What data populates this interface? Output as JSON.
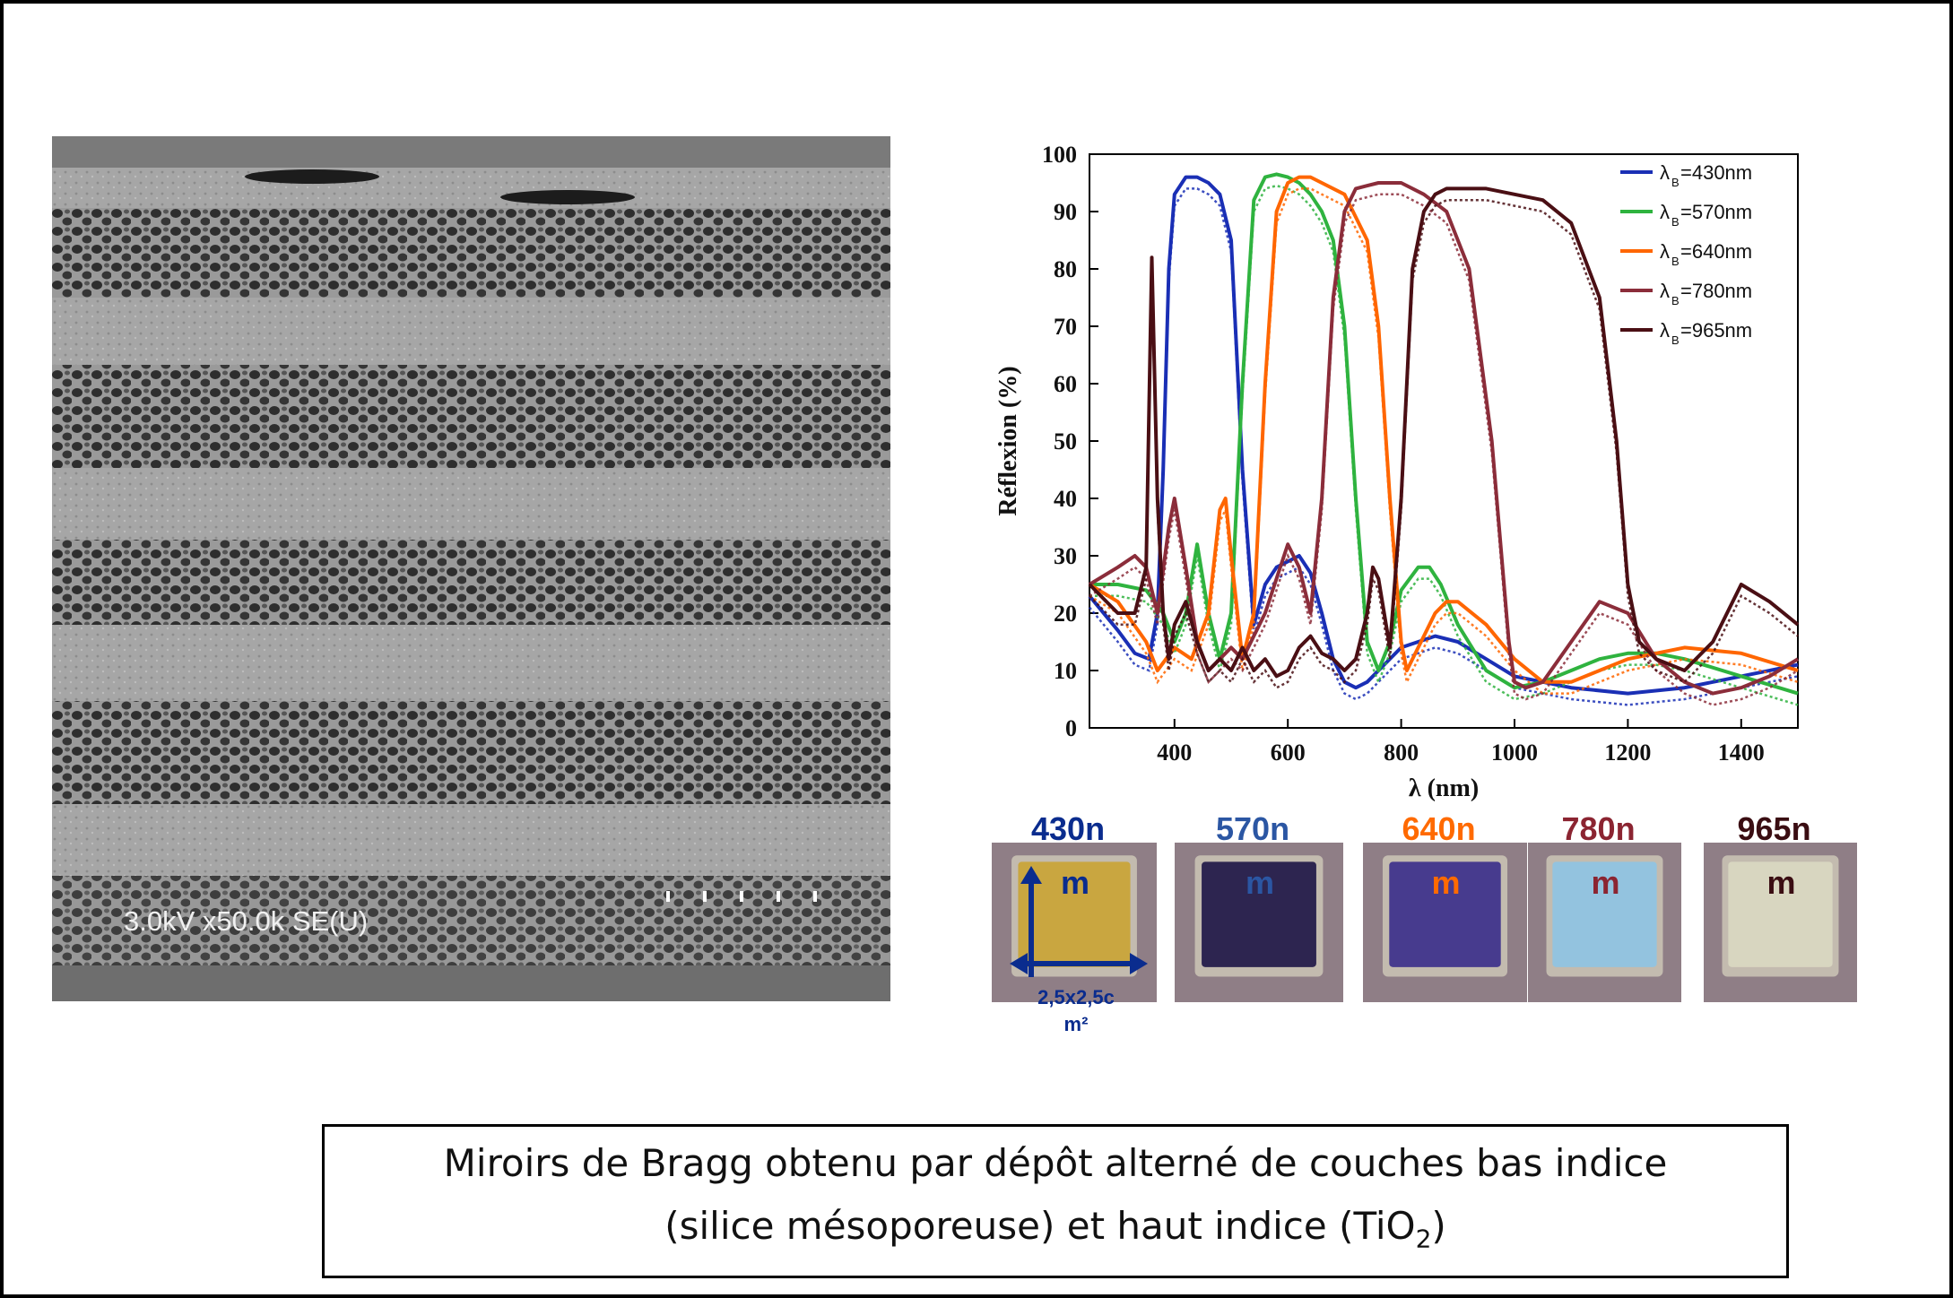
{
  "sem": {
    "label": "3.0kV x50.0k SE(U)"
  },
  "samples": [
    {
      "nm": "430n",
      "unit": "m",
      "color": "#0a2c8e",
      "tile_color": "#c9a640"
    },
    {
      "nm": "570n",
      "unit": "m",
      "color": "#2b56a3",
      "tile_color": "#2d2550"
    },
    {
      "nm": "640n",
      "unit": "m",
      "color": "#ff6a00",
      "tile_color": "#473b8e"
    },
    {
      "nm": "780n",
      "unit": "m",
      "color": "#8b2431",
      "tile_color": "#93c3df"
    },
    {
      "nm": "965n",
      "unit": "m",
      "color": "#3a0d12",
      "tile_color": "#d8d6c0"
    }
  ],
  "size_label": {
    "line1": "2,5x2,5c",
    "line2": "m²"
  },
  "caption": {
    "line1": "Miroirs de Bragg obtenu par dépôt alterné de couches bas indice",
    "line2_prefix": "(silice mésoporeuse) et haut indice (TiO",
    "line2_sub": "2",
    "line2_suffix": ")"
  },
  "chart_data": {
    "type": "line",
    "xlabel": "λ (nm)",
    "ylabel": "Réflexion (%)",
    "xlim": [
      250,
      1500
    ],
    "ylim": [
      0,
      100
    ],
    "xticks": [
      400,
      600,
      800,
      1000,
      1200,
      1400
    ],
    "yticks": [
      0,
      10,
      20,
      30,
      40,
      50,
      60,
      70,
      80,
      90,
      100
    ],
    "legend_position": "top-right",
    "series": [
      {
        "name": "λB=430nm",
        "legend_main": "λ",
        "legend_sub": "B",
        "legend_rest": "=430nm",
        "color": "#1a2fb5",
        "x": [
          250,
          300,
          330,
          355,
          370,
          380,
          390,
          400,
          420,
          440,
          460,
          480,
          500,
          520,
          540,
          560,
          580,
          600,
          620,
          640,
          660,
          680,
          700,
          720,
          740,
          760,
          800,
          860,
          900,
          950,
          1000,
          1100,
          1200,
          1300,
          1400,
          1500
        ],
        "y": [
          23,
          17,
          13,
          12,
          20,
          45,
          80,
          93,
          96,
          96,
          95,
          93,
          85,
          45,
          18,
          25,
          28,
          29,
          30,
          27,
          20,
          12,
          8,
          7,
          8,
          10,
          14,
          16,
          15,
          12,
          9,
          7,
          6,
          7,
          9,
          11
        ]
      },
      {
        "name": "λB=570nm",
        "legend_main": "λ",
        "legend_sub": "B",
        "legend_rest": "=570nm",
        "color": "#2fb33f",
        "x": [
          250,
          300,
          350,
          380,
          400,
          420,
          440,
          460,
          480,
          500,
          520,
          540,
          560,
          580,
          600,
          620,
          640,
          660,
          680,
          700,
          720,
          740,
          760,
          780,
          800,
          830,
          850,
          870,
          900,
          950,
          1000,
          1050,
          1100,
          1150,
          1200,
          1250,
          1300,
          1400,
          1500
        ],
        "y": [
          25,
          25,
          24,
          20,
          15,
          20,
          32,
          20,
          12,
          20,
          60,
          92,
          96,
          96.5,
          96,
          95,
          93,
          90,
          85,
          70,
          40,
          15,
          10,
          15,
          24,
          28,
          28,
          25,
          18,
          10,
          7,
          8,
          10,
          12,
          13,
          13,
          12,
          9,
          6
        ]
      },
      {
        "name": "λB=640nm",
        "legend_main": "λ",
        "legend_sub": "B",
        "legend_rest": "=640nm",
        "color": "#ff6600",
        "x": [
          250,
          300,
          350,
          370,
          400,
          430,
          460,
          480,
          490,
          500,
          520,
          540,
          560,
          580,
          600,
          620,
          640,
          660,
          700,
          740,
          760,
          780,
          800,
          810,
          820,
          840,
          860,
          880,
          900,
          950,
          1000,
          1050,
          1100,
          1150,
          1200,
          1300,
          1400,
          1500
        ],
        "y": [
          25,
          22,
          15,
          10,
          14,
          12,
          20,
          38,
          40,
          30,
          12,
          20,
          60,
          90,
          95,
          96,
          96,
          95,
          93,
          85,
          70,
          40,
          15,
          10,
          12,
          16,
          20,
          22,
          22,
          18,
          12,
          8,
          8,
          10,
          12,
          14,
          13,
          10
        ]
      },
      {
        "name": "λB=780nm",
        "legend_main": "λ",
        "legend_sub": "B",
        "legend_rest": "=780nm",
        "color": "#8b2d3a",
        "x": [
          250,
          300,
          330,
          350,
          370,
          390,
          400,
          420,
          440,
          460,
          480,
          500,
          520,
          560,
          600,
          620,
          640,
          660,
          680,
          700,
          720,
          760,
          800,
          840,
          880,
          920,
          960,
          990,
          1000,
          1020,
          1050,
          1100,
          1150,
          1200,
          1250,
          1300,
          1350,
          1400,
          1450,
          1500
        ],
        "y": [
          25,
          28,
          30,
          28,
          20,
          35,
          40,
          28,
          15,
          10,
          12,
          14,
          12,
          20,
          32,
          28,
          20,
          40,
          75,
          90,
          94,
          95,
          95,
          93,
          90,
          80,
          50,
          15,
          8,
          7,
          8,
          15,
          22,
          20,
          12,
          8,
          6,
          7,
          9,
          12
        ]
      },
      {
        "name": "λB=965nm",
        "legend_main": "λ",
        "legend_sub": "B",
        "legend_rest": "=965nm",
        "color": "#4a0f14",
        "x": [
          250,
          300,
          330,
          350,
          360,
          370,
          380,
          390,
          400,
          420,
          440,
          460,
          480,
          500,
          520,
          540,
          560,
          580,
          600,
          620,
          640,
          660,
          680,
          700,
          720,
          740,
          750,
          760,
          780,
          800,
          820,
          840,
          860,
          880,
          900,
          950,
          1000,
          1050,
          1100,
          1150,
          1180,
          1200,
          1220,
          1250,
          1300,
          1350,
          1400,
          1450,
          1500
        ],
        "y": [
          25,
          20,
          20,
          28,
          82,
          40,
          20,
          12,
          18,
          22,
          15,
          10,
          12,
          10,
          14,
          10,
          12,
          9,
          10,
          14,
          16,
          13,
          12,
          10,
          12,
          20,
          28,
          26,
          14,
          40,
          80,
          90,
          93,
          94,
          94,
          94,
          93,
          92,
          88,
          75,
          50,
          25,
          15,
          12,
          10,
          15,
          25,
          22,
          18
        ]
      }
    ]
  }
}
